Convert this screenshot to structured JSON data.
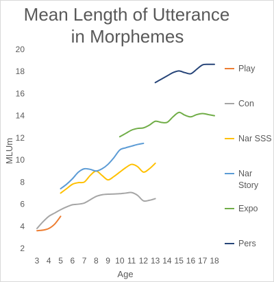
{
  "chart_data": {
    "type": "line",
    "title": [
      "Mean Length of Utterance",
      "in Morphemes"
    ],
    "xlabel": "Age",
    "ylabel": "MLUm",
    "ylim": [
      2,
      20
    ],
    "yticks": [
      2,
      4,
      6,
      8,
      10,
      12,
      14,
      16,
      18,
      20
    ],
    "xticks": [
      3,
      4,
      5,
      6,
      7,
      8,
      9,
      10,
      11,
      12,
      13,
      14,
      15,
      16,
      17,
      18
    ],
    "xlim": [
      3,
      18
    ],
    "grid": false,
    "legend_position": "right",
    "series": [
      {
        "name": "Play",
        "color": "#ED7D31",
        "x": [
          3,
          3.5,
          4,
          4.5,
          5
        ],
        "y": [
          3.6,
          3.65,
          3.8,
          4.2,
          4.9
        ]
      },
      {
        "name": "Con",
        "color": "#A5A5A5",
        "x": [
          3,
          3.5,
          4,
          4.5,
          5,
          5.5,
          6,
          6.5,
          7,
          7.5,
          8,
          8.5,
          9,
          9.5,
          10,
          10.5,
          11,
          11.5,
          12,
          12.5,
          13
        ],
        "y": [
          3.8,
          4.4,
          4.9,
          5.2,
          5.5,
          5.75,
          5.95,
          6.0,
          6.1,
          6.4,
          6.7,
          6.85,
          6.9,
          6.92,
          6.95,
          7.0,
          7.05,
          6.8,
          6.3,
          6.35,
          6.5
        ]
      },
      {
        "name": "Nar SSS",
        "color": "#FFC000",
        "x": [
          5,
          5.5,
          6,
          6.5,
          7,
          7.5,
          8,
          8.5,
          9,
          9.5,
          10,
          10.5,
          11,
          11.5,
          12,
          12.5,
          13
        ],
        "y": [
          7.0,
          7.4,
          7.8,
          7.95,
          8.0,
          8.6,
          9.0,
          8.6,
          8.2,
          8.5,
          8.9,
          9.3,
          9.6,
          9.4,
          8.9,
          9.2,
          9.7
        ]
      },
      {
        "name": "Nar Story",
        "color": "#5B9BD5",
        "x": [
          5,
          5.5,
          6,
          6.5,
          7,
          7.5,
          8,
          8.5,
          9,
          9.5,
          10,
          10.5,
          11,
          11.5,
          12
        ],
        "y": [
          7.4,
          7.8,
          8.3,
          8.9,
          9.2,
          9.15,
          9.0,
          9.2,
          9.6,
          10.2,
          10.9,
          11.1,
          11.25,
          11.4,
          11.5
        ]
      },
      {
        "name": "Expo",
        "color": "#70AD47",
        "x": [
          10,
          10.5,
          11,
          11.5,
          12,
          12.5,
          13,
          13.5,
          14,
          14.5,
          15,
          15.5,
          16,
          16.5,
          17,
          17.5,
          18
        ],
        "y": [
          12.1,
          12.4,
          12.7,
          12.85,
          12.9,
          13.15,
          13.5,
          13.4,
          13.4,
          13.9,
          14.3,
          14.05,
          13.9,
          14.1,
          14.2,
          14.1,
          14.0
        ]
      },
      {
        "name": "Pers",
        "color": "#264478",
        "x": [
          13,
          13.5,
          14,
          14.5,
          15,
          15.5,
          16,
          16.5,
          17,
          17.5,
          18
        ],
        "y": [
          17.0,
          17.3,
          17.6,
          17.9,
          18.05,
          17.9,
          17.8,
          18.2,
          18.6,
          18.65,
          18.65
        ]
      }
    ]
  }
}
